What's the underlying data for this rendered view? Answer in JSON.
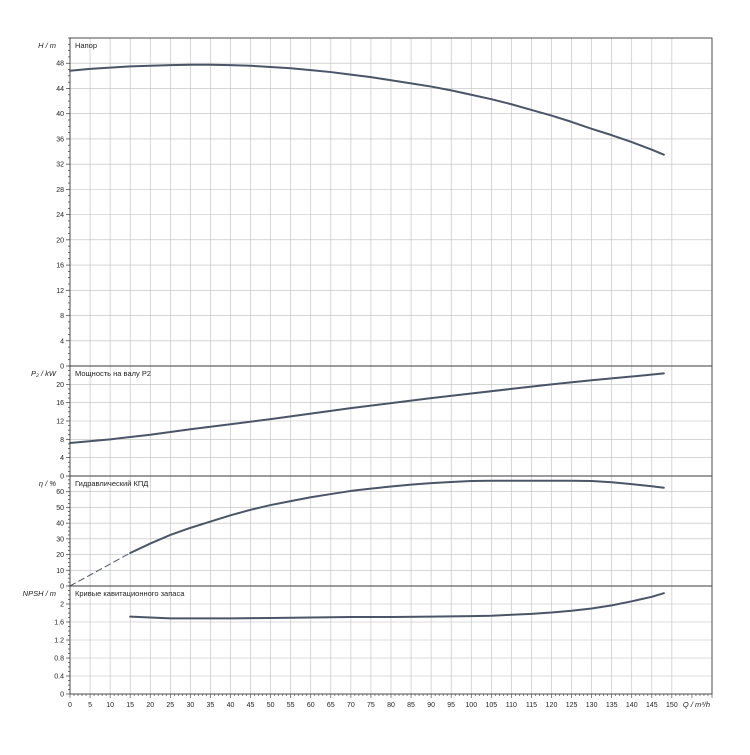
{
  "chart_data": [
    {
      "type": "line",
      "title": "Напор",
      "ylabel": "H / m",
      "ylim": [
        0,
        52
      ],
      "yticks": [
        0,
        4,
        8,
        12,
        16,
        20,
        24,
        28,
        32,
        36,
        40,
        44,
        48
      ],
      "grid": true,
      "series": [
        {
          "x": [
            0,
            5,
            10,
            15,
            20,
            25,
            30,
            35,
            40,
            45,
            50,
            55,
            60,
            65,
            70,
            75,
            80,
            85,
            90,
            95,
            100,
            105,
            110,
            115,
            120,
            125,
            130,
            135,
            140,
            145,
            148
          ],
          "y": [
            46.8,
            47.1,
            47.3,
            47.5,
            47.6,
            47.7,
            47.75,
            47.75,
            47.7,
            47.6,
            47.4,
            47.2,
            46.9,
            46.6,
            46.2,
            45.8,
            45.3,
            44.8,
            44.3,
            43.7,
            43.0,
            42.3,
            41.5,
            40.6,
            39.7,
            38.7,
            37.6,
            36.6,
            35.5,
            34.3,
            33.5
          ]
        }
      ]
    },
    {
      "type": "line",
      "title": "Мощность на валу P2",
      "ylabel": "P₂ / kW",
      "ylim": [
        0,
        24
      ],
      "yticks": [
        0,
        4,
        8,
        12,
        16,
        20
      ],
      "grid": true,
      "series": [
        {
          "x": [
            0,
            10,
            20,
            30,
            40,
            50,
            60,
            70,
            80,
            90,
            100,
            110,
            120,
            130,
            140,
            148
          ],
          "y": [
            7.2,
            8.0,
            9.0,
            10.2,
            11.3,
            12.4,
            13.6,
            14.8,
            15.9,
            17.0,
            18.0,
            19.0,
            20.0,
            20.9,
            21.7,
            22.4
          ]
        }
      ]
    },
    {
      "type": "line",
      "title": "Гидравлический КПД",
      "ylabel": "η / %",
      "ylim": [
        0,
        70
      ],
      "yticks": [
        0,
        10,
        20,
        30,
        40,
        50,
        60
      ],
      "grid": true,
      "series": [
        {
          "x": [
            15,
            20,
            25,
            30,
            35,
            40,
            45,
            50,
            55,
            60,
            65,
            70,
            75,
            80,
            85,
            90,
            95,
            100,
            105,
            110,
            115,
            120,
            125,
            130,
            135,
            140,
            145,
            148
          ],
          "y": [
            21,
            27,
            32.5,
            37,
            41,
            45,
            48.5,
            51.5,
            54,
            56.5,
            58.5,
            60.5,
            62,
            63.3,
            64.5,
            65.5,
            66.2,
            66.8,
            67,
            67,
            67,
            67,
            67,
            66.8,
            66,
            64.8,
            63.5,
            62.5
          ]
        },
        {
          "dashed": true,
          "x": [
            0,
            15
          ],
          "y": [
            0,
            21
          ]
        }
      ]
    },
    {
      "type": "line",
      "title": "Кривые кавитационного запаса",
      "ylabel": "NPSH / m",
      "xlabel": "Q / m³/h",
      "ylim": [
        0,
        2.4
      ],
      "yticks": [
        0,
        0.4,
        0.8,
        1.2,
        1.6,
        2
      ],
      "ytick_labels": [
        "0",
        "0.4",
        "0.8",
        "1.2",
        "1.6",
        "2"
      ],
      "xlim": [
        0,
        160
      ],
      "xticks": [
        0,
        5,
        10,
        15,
        20,
        25,
        30,
        35,
        40,
        45,
        50,
        55,
        60,
        65,
        70,
        75,
        80,
        85,
        90,
        95,
        100,
        105,
        110,
        115,
        120,
        125,
        130,
        135,
        140,
        145,
        150
      ],
      "grid": true,
      "series": [
        {
          "x": [
            15,
            25,
            40,
            50,
            60,
            70,
            80,
            90,
            100,
            105,
            110,
            115,
            120,
            125,
            130,
            135,
            140,
            145,
            148
          ],
          "y": [
            1.72,
            1.68,
            1.68,
            1.69,
            1.7,
            1.71,
            1.71,
            1.72,
            1.73,
            1.74,
            1.76,
            1.78,
            1.81,
            1.85,
            1.9,
            1.97,
            2.06,
            2.16,
            2.24
          ]
        }
      ]
    }
  ],
  "colors": {
    "curve": "#4a5668",
    "grid": "#bdbdbd",
    "frame": "#3a3a3a"
  }
}
